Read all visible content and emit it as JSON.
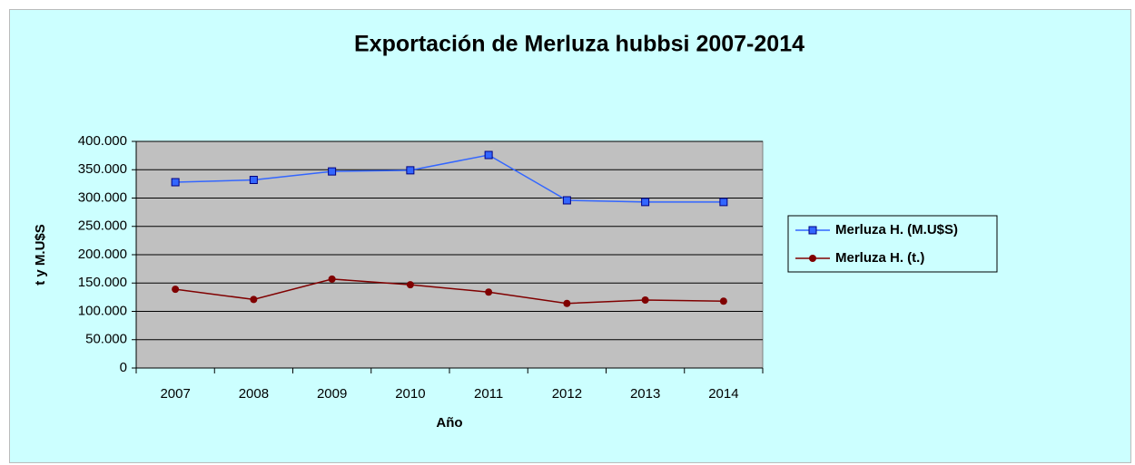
{
  "chart_data": {
    "type": "line",
    "title": "Exportación de Merluza hubbsi 2007-2014",
    "x_label": "Año",
    "y_label": "t y M.U$S",
    "categories": [
      "2007",
      "2008",
      "2009",
      "2010",
      "2011",
      "2012",
      "2013",
      "2014"
    ],
    "series": [
      {
        "name": "Merluza H. (M.U$S)",
        "color": "#3366ff",
        "marker": "square",
        "values": [
          328000,
          332000,
          347000,
          349000,
          376000,
          296000,
          293000,
          293000
        ]
      },
      {
        "name": "Merluza H. (t.)",
        "color": "#800000",
        "marker": "circle",
        "values": [
          139000,
          121000,
          157000,
          147000,
          134000,
          114000,
          120000,
          118000
        ]
      }
    ],
    "ylim": [
      0,
      400000
    ],
    "yticks": [
      0,
      {
        "value": 50000,
        "label": "50.000"
      },
      {
        "value": 100000,
        "label": "100.000"
      },
      {
        "value": 150000,
        "label": "150.000"
      },
      {
        "value": 200000,
        "label": "200.000"
      },
      {
        "value": 250000,
        "label": "250.000"
      },
      {
        "value": 300000,
        "label": "300.000"
      },
      {
        "value": 350000,
        "label": "350.000"
      },
      {
        "value": 400000,
        "label": "400.000"
      }
    ],
    "grid": true,
    "legend": "right"
  }
}
